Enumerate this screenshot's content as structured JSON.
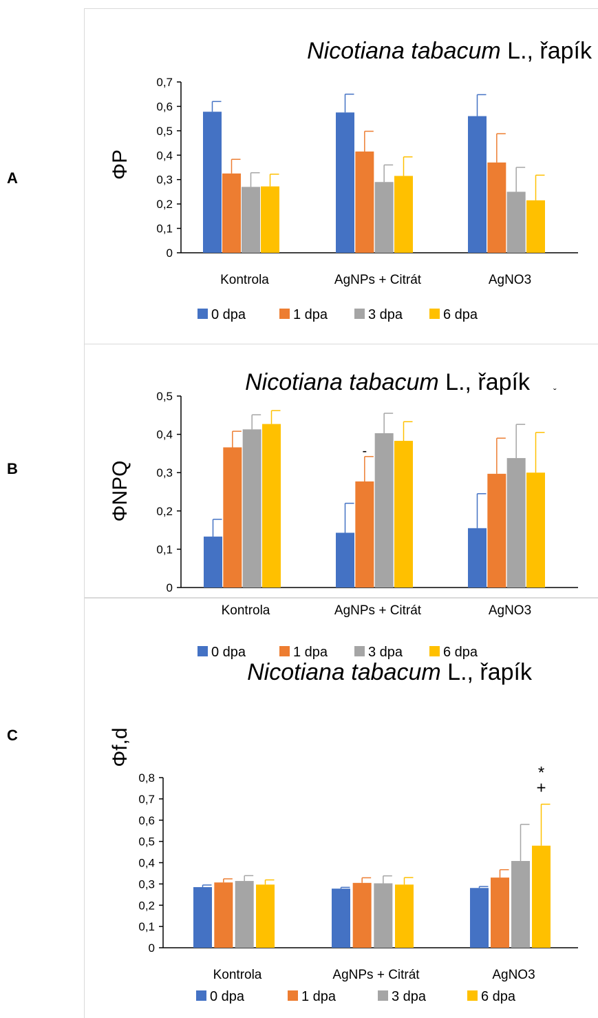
{
  "panels": [
    {
      "letter": "A"
    },
    {
      "letter": "B"
    },
    {
      "letter": "C"
    }
  ],
  "colors": {
    "s0": "#4472C4",
    "s1": "#ED7D31",
    "s2": "#A5A5A5",
    "s3": "#FFC000",
    "axis": "#000000",
    "frame": "#D9D9D9"
  },
  "chart_data": [
    {
      "type": "bar",
      "title_italic": "Nicotiana tabacum",
      "title_rest": " L., řapík",
      "ylabel": "ΦP",
      "ylim": [
        0,
        0.7
      ],
      "yticks": [
        "0",
        "0,1",
        "0,2",
        "0,3",
        "0,4",
        "0,5",
        "0,6",
        "0,7"
      ],
      "categories": [
        "Kontrola",
        "AgNPs + Citrát",
        "AgNO3"
      ],
      "series": [
        {
          "name": "0 dpa",
          "values": [
            0.578,
            0.575,
            0.56
          ],
          "errors": [
            0.042,
            0.075,
            0.088
          ]
        },
        {
          "name": "1 dpa",
          "values": [
            0.325,
            0.415,
            0.37
          ],
          "errors": [
            0.058,
            0.083,
            0.118
          ]
        },
        {
          "name": "3 dpa",
          "values": [
            0.27,
            0.29,
            0.25
          ],
          "errors": [
            0.058,
            0.07,
            0.1
          ]
        },
        {
          "name": "6 dpa",
          "values": [
            0.272,
            0.315,
            0.215
          ],
          "errors": [
            0.05,
            0.078,
            0.103
          ]
        }
      ],
      "annotations": [],
      "legend": "bottom"
    },
    {
      "type": "bar",
      "title_italic": "Nicotiana tabacum",
      "title_rest": " L., řapík",
      "ylabel": "ΦNPQ",
      "ylim": [
        0,
        0.5
      ],
      "yticks": [
        "0",
        "0,1",
        "0,2",
        "0,3",
        "0,4",
        "0,5"
      ],
      "categories": [
        "Kontrola",
        "AgNPs + Citrát",
        "AgNO3"
      ],
      "series": [
        {
          "name": "0 dpa",
          "values": [
            0.133,
            0.143,
            0.155
          ],
          "errors": [
            0.045,
            0.077,
            0.09
          ]
        },
        {
          "name": "1 dpa",
          "values": [
            0.366,
            0.277,
            0.297
          ],
          "errors": [
            0.042,
            0.065,
            0.093
          ]
        },
        {
          "name": "3 dpa",
          "values": [
            0.413,
            0.403,
            0.338
          ],
          "errors": [
            0.038,
            0.052,
            0.088
          ]
        },
        {
          "name": "6 dpa",
          "values": [
            0.427,
            0.383,
            0.3
          ],
          "errors": [
            0.035,
            0.05,
            0.105
          ]
        }
      ],
      "annotations": [
        {
          "category": 1,
          "series": 1,
          "text": "-"
        },
        {
          "text": "ˇ",
          "near": "title"
        }
      ],
      "legend": "bottom"
    },
    {
      "type": "bar",
      "title_italic": "Nicotiana tabacum",
      "title_rest": " L., řapík",
      "ylabel": "Φf,d",
      "ylim": [
        0,
        0.8
      ],
      "yticks": [
        "0",
        "0,1",
        "0,2",
        "0,3",
        "0,4",
        "0,5",
        "0,6",
        "0,7",
        "0,8"
      ],
      "categories": [
        "Kontrola",
        "AgNPs + Citrát",
        "AgNO3"
      ],
      "series": [
        {
          "name": "0 dpa",
          "values": [
            0.285,
            0.278,
            0.281
          ],
          "errors": [
            0.01,
            0.006,
            0.007
          ]
        },
        {
          "name": "1 dpa",
          "values": [
            0.307,
            0.305,
            0.33
          ],
          "errors": [
            0.017,
            0.024,
            0.037
          ]
        },
        {
          "name": "3 dpa",
          "values": [
            0.314,
            0.303,
            0.408
          ],
          "errors": [
            0.025,
            0.035,
            0.172
          ]
        },
        {
          "name": "6 dpa",
          "values": [
            0.297,
            0.297,
            0.48
          ],
          "errors": [
            0.022,
            0.033,
            0.195
          ]
        }
      ],
      "annotations": [
        {
          "category": 2,
          "series": 3,
          "text": "*"
        },
        {
          "category": 2,
          "series": 3,
          "text": "+"
        }
      ],
      "legend": "bottom"
    }
  ]
}
